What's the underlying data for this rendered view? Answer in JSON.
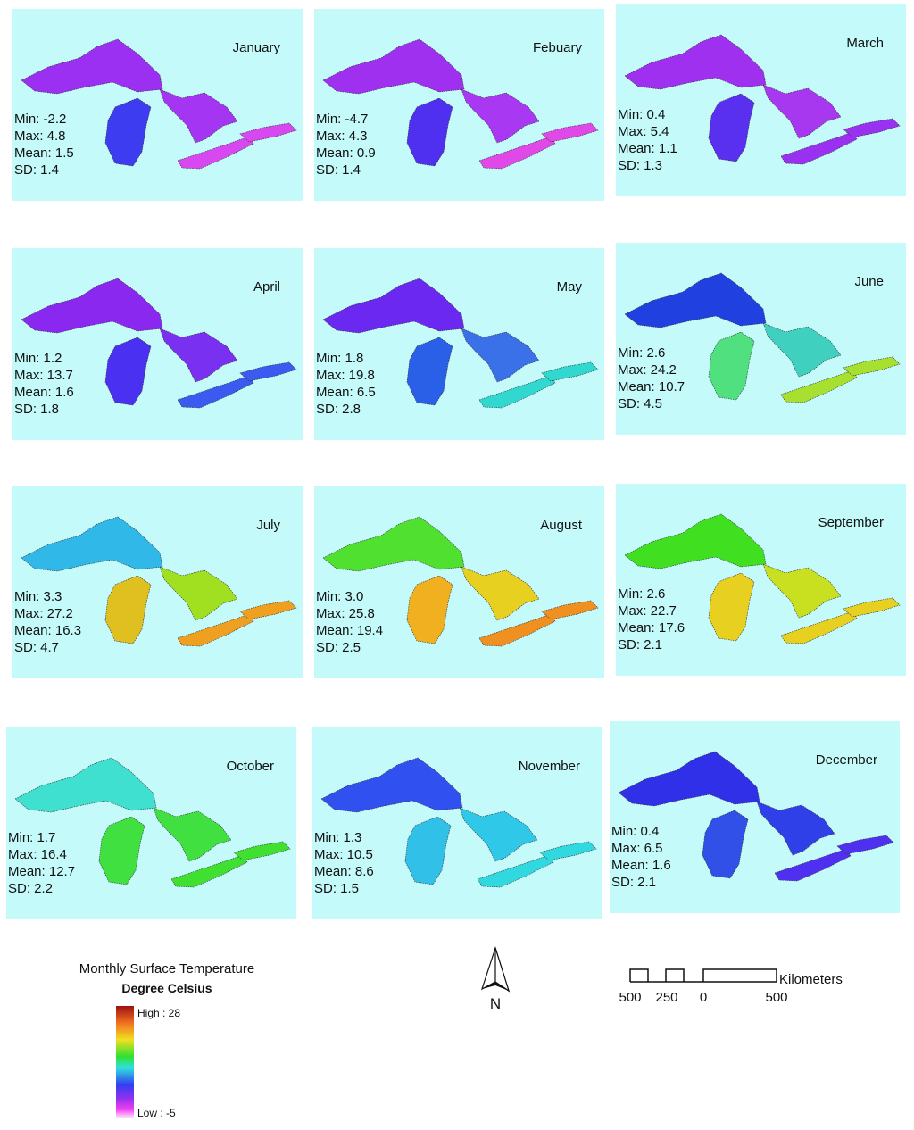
{
  "panels": [
    {
      "month": "January",
      "stats": [
        "Min: -2.2",
        "Max: 4.8",
        "Mean: 1.5",
        "SD: 1.4"
      ],
      "colors": [
        "#9b2ff2",
        "#3d3cf0",
        "#a435f2",
        "#d848f0"
      ]
    },
    {
      "month": "Febuary",
      "stats": [
        "Min: -4.7",
        "Max: 4.3",
        "Mean: 0.9",
        "SD: 1.4"
      ],
      "colors": [
        "#a030f0",
        "#5030f0",
        "#a838f2",
        "#e048e8"
      ]
    },
    {
      "month": "March",
      "stats": [
        "Min: 0.4",
        "Max: 5.4",
        "Mean: 1.1",
        "SD: 1.3"
      ],
      "colors": [
        "#a030f0",
        "#5a30f0",
        "#a838f0",
        "#9a30f0"
      ]
    },
    {
      "month": "April",
      "stats": [
        "Min: 1.2",
        "Max: 13.7",
        "Mean: 1.6",
        "SD: 1.8"
      ],
      "colors": [
        "#8a28f0",
        "#4a30f0",
        "#7a30f0",
        "#3a5af0"
      ]
    },
    {
      "month": "May",
      "stats": [
        "Min: 1.8",
        "Max: 19.8",
        "Mean: 6.5",
        "SD: 2.8"
      ],
      "colors": [
        "#6a28f0",
        "#2a60e8",
        "#3a70e8",
        "#30d8d0"
      ]
    },
    {
      "month": "June",
      "stats": [
        "Min: 2.6",
        "Max: 24.2",
        "Mean: 10.7",
        "SD: 4.5"
      ],
      "colors": [
        "#2040e0",
        "#50e080",
        "#40d0c0",
        "#a8e030"
      ]
    },
    {
      "month": "July",
      "stats": [
        "Min: 3.3",
        "Max: 27.2",
        "Mean: 16.3",
        "SD: 4.7"
      ],
      "colors": [
        "#30b8e8",
        "#e0c020",
        "#a0e020",
        "#f0a020"
      ]
    },
    {
      "month": "August",
      "stats": [
        "Min: 3.0",
        "Max: 25.8",
        "Mean: 19.4",
        "SD: 2.5"
      ],
      "colors": [
        "#50e030",
        "#f0b020",
        "#e8d020",
        "#f09020"
      ]
    },
    {
      "month": "September",
      "stats": [
        "Min: 2.6",
        "Max: 22.7",
        "Mean: 17.6",
        "SD: 2.1"
      ],
      "colors": [
        "#40e020",
        "#e8d020",
        "#c8e020",
        "#e8d020"
      ]
    },
    {
      "month": "October",
      "stats": [
        "Min: 1.7",
        "Max: 16.4",
        "Mean: 12.7",
        "SD: 2.2"
      ],
      "colors": [
        "#40e0d0",
        "#40e040",
        "#40e040",
        "#40e030"
      ]
    },
    {
      "month": "November",
      "stats": [
        "Min: 1.3",
        "Max: 10.5",
        "Mean: 8.6",
        "SD: 1.5"
      ],
      "colors": [
        "#3050f0",
        "#30c0e8",
        "#30c8e8",
        "#30d8e0"
      ]
    },
    {
      "month": "December",
      "stats": [
        "Min: 0.4",
        "Max: 6.5",
        "Mean: 1.6",
        "SD: 2.1"
      ],
      "colors": [
        "#3030e8",
        "#3050e8",
        "#3040e8",
        "#5030f0"
      ]
    }
  ],
  "legend": {
    "title": "Monthly Surface Temperature",
    "subtitle": "Degree Celsius",
    "high": "High : 28",
    "low": "Low : -5"
  },
  "north": "N",
  "scale": {
    "unit": "Kilometers",
    "labels": [
      "500",
      "250",
      "0",
      "500"
    ]
  }
}
